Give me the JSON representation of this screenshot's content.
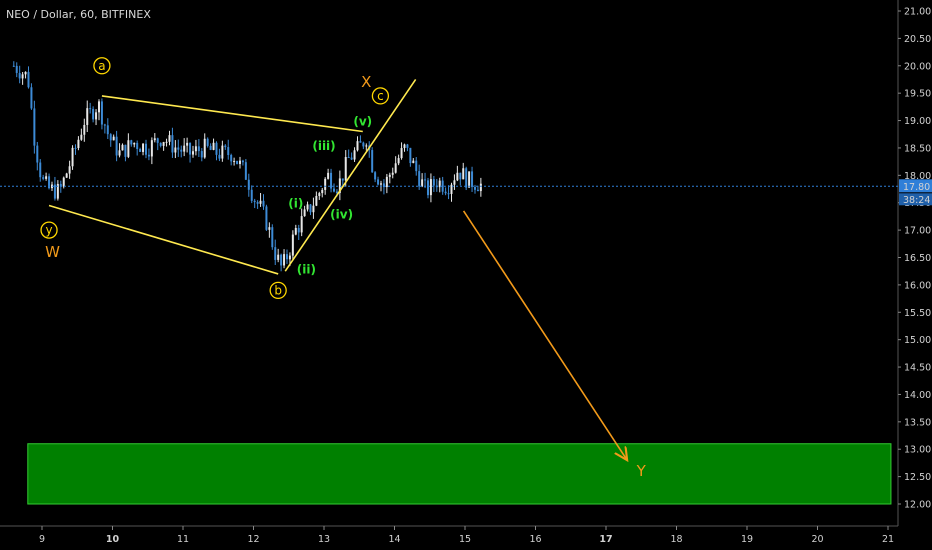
{
  "chart_data": {
    "type": "candlestick",
    "title": "NEO / Dollar, 60, BITFINEX",
    "ylim": [
      11.8,
      21.2
    ],
    "xlim": [
      8.6,
      21.1
    ],
    "y_ticks": [
      "21.00",
      "20.50",
      "20.00",
      "19.50",
      "19.00",
      "18.50",
      "18.00",
      "17.50",
      "17.00",
      "16.50",
      "16.00",
      "15.50",
      "15.00",
      "14.50",
      "14.00",
      "13.50",
      "13.00",
      "12.50",
      "12.00"
    ],
    "x_ticks": [
      {
        "label": "9",
        "value": 9,
        "bold": false
      },
      {
        "label": "10",
        "value": 10,
        "bold": true
      },
      {
        "label": "11",
        "value": 11,
        "bold": false
      },
      {
        "label": "12",
        "value": 12,
        "bold": false
      },
      {
        "label": "13",
        "value": 13,
        "bold": false
      },
      {
        "label": "14",
        "value": 14,
        "bold": false
      },
      {
        "label": "15",
        "value": 15,
        "bold": false
      },
      {
        "label": "16",
        "value": 16,
        "bold": false
      },
      {
        "label": "17",
        "value": 17,
        "bold": true
      },
      {
        "label": "18",
        "value": 18,
        "bold": false
      },
      {
        "label": "19",
        "value": 19,
        "bold": false
      },
      {
        "label": "20",
        "value": 20,
        "bold": false
      },
      {
        "label": "21",
        "value": 21,
        "bold": false
      }
    ],
    "price_path": [
      [
        8.6,
        20.0
      ],
      [
        8.7,
        19.9
      ],
      [
        8.8,
        19.8
      ],
      [
        8.9,
        18.6
      ],
      [
        9.0,
        17.9
      ],
      [
        9.1,
        17.75
      ],
      [
        9.25,
        17.7
      ],
      [
        9.45,
        18.4
      ],
      [
        9.6,
        19.0
      ],
      [
        9.8,
        19.3
      ],
      [
        9.95,
        18.7
      ],
      [
        10.1,
        18.4
      ],
      [
        10.3,
        18.6
      ],
      [
        10.5,
        18.5
      ],
      [
        10.7,
        18.7
      ],
      [
        10.9,
        18.5
      ],
      [
        11.1,
        18.4
      ],
      [
        11.3,
        18.5
      ],
      [
        11.5,
        18.4
      ],
      [
        11.7,
        18.4
      ],
      [
        11.9,
        18.0
      ],
      [
        12.0,
        17.6
      ],
      [
        12.1,
        17.4
      ],
      [
        12.2,
        17.1
      ],
      [
        12.3,
        16.6
      ],
      [
        12.4,
        16.3
      ],
      [
        12.5,
        16.6
      ],
      [
        12.6,
        17.0
      ],
      [
        12.75,
        17.3
      ],
      [
        12.9,
        17.6
      ],
      [
        13.05,
        18.0
      ],
      [
        13.2,
        17.8
      ],
      [
        13.35,
        18.3
      ],
      [
        13.5,
        18.5
      ],
      [
        13.6,
        18.7
      ],
      [
        13.7,
        18.1
      ],
      [
        13.85,
        17.8
      ],
      [
        14.0,
        18.2
      ],
      [
        14.15,
        18.5
      ],
      [
        14.3,
        18.1
      ],
      [
        14.45,
        17.7
      ],
      [
        14.6,
        17.9
      ],
      [
        14.75,
        17.8
      ],
      [
        14.9,
        18.1
      ],
      [
        15.05,
        17.9
      ],
      [
        15.2,
        17.85
      ],
      [
        15.25,
        17.8
      ]
    ],
    "current_price": {
      "value": 17.8,
      "label": "17.80",
      "countdown": "38:24"
    },
    "target_zone": {
      "x": [
        8.6,
        20.9
      ],
      "y": [
        12.0,
        13.1
      ],
      "color": "#008000",
      "border": "#33cc33"
    },
    "lines": [
      {
        "name": "wxy-upper-line",
        "from": [
          9.85,
          19.45
        ],
        "to": [
          13.55,
          18.8
        ],
        "color": "#ffe94f"
      },
      {
        "name": "wxy-lower-line",
        "from": [
          9.1,
          17.45
        ],
        "to": [
          12.35,
          16.2
        ],
        "color": "#ffe94f"
      },
      {
        "name": "impulse-trend-line",
        "from": [
          12.45,
          16.25
        ],
        "to": [
          14.3,
          19.75
        ],
        "color": "#ffe94f"
      },
      {
        "name": "projection-arrow",
        "from": [
          14.98,
          17.35
        ],
        "to": [
          17.3,
          12.8
        ],
        "color": "#f29a1a",
        "arrow": true
      }
    ],
    "annotations": [
      {
        "name": "wave-a-label",
        "text": "a",
        "x": 9.85,
        "y": 20.0,
        "style": "circle",
        "color": "#ffd700"
      },
      {
        "name": "wave-y-small-label",
        "text": "y",
        "x": 9.1,
        "y": 17.0,
        "style": "circle",
        "color": "#ffd700"
      },
      {
        "name": "wave-W-label",
        "text": "W",
        "x": 9.15,
        "y": 16.6,
        "style": "text",
        "color": "#f29a1a"
      },
      {
        "name": "wave-b-label",
        "text": "b",
        "x": 12.35,
        "y": 15.9,
        "style": "circle",
        "color": "#ffd700"
      },
      {
        "name": "wave-X-label",
        "text": "X",
        "x": 13.6,
        "y": 19.7,
        "style": "text",
        "color": "#f29a1a"
      },
      {
        "name": "wave-c-label",
        "text": "c",
        "x": 13.8,
        "y": 19.45,
        "style": "circle",
        "color": "#ffd700"
      },
      {
        "name": "wave-i-label",
        "text": "(i)",
        "x": 12.6,
        "y": 17.5,
        "style": "text",
        "color": "#32e632"
      },
      {
        "name": "wave-ii-label",
        "text": "(ii)",
        "x": 12.75,
        "y": 16.3,
        "style": "text",
        "color": "#32e632"
      },
      {
        "name": "wave-iii-label",
        "text": "(iii)",
        "x": 13.0,
        "y": 18.55,
        "style": "text",
        "color": "#32e632"
      },
      {
        "name": "wave-iv-label",
        "text": "(iv)",
        "x": 13.25,
        "y": 17.3,
        "style": "text",
        "color": "#32e632"
      },
      {
        "name": "wave-v-label",
        "text": "(v)",
        "x": 13.55,
        "y": 19.0,
        "style": "text",
        "color": "#32e632"
      },
      {
        "name": "wave-Y-label",
        "text": "Y",
        "x": 17.5,
        "y": 12.6,
        "style": "text",
        "color": "#f29a1a"
      }
    ]
  }
}
